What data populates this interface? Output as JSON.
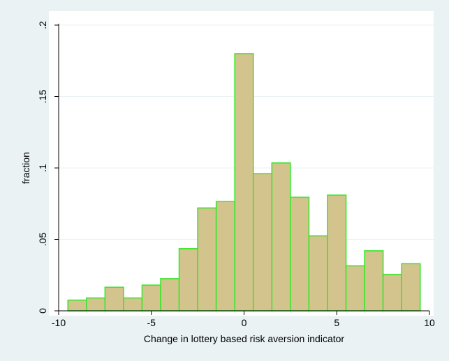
{
  "chart_data": {
    "type": "bar",
    "xlabel": "Change in lottery based risk aversion indicator",
    "ylabel": "fraction",
    "xlim": [
      -10,
      10
    ],
    "ylim": [
      0,
      0.2
    ],
    "x_ticks": [
      -10,
      -5,
      0,
      5,
      10
    ],
    "x_tick_labels": [
      "-10",
      "-5",
      "0",
      "5",
      "10"
    ],
    "y_ticks": [
      0,
      0.05,
      0.1,
      0.15,
      0.2
    ],
    "y_tick_labels": [
      "0",
      ".05",
      ".1",
      ".15",
      ".2"
    ],
    "grid": "horizontal",
    "bin_width": 1,
    "bins": [
      {
        "from": -9.5,
        "to": -8.5,
        "value": 0.0075
      },
      {
        "from": -8.5,
        "to": -7.5,
        "value": 0.009
      },
      {
        "from": -7.5,
        "to": -6.5,
        "value": 0.0165
      },
      {
        "from": -6.5,
        "to": -5.5,
        "value": 0.009
      },
      {
        "from": -5.5,
        "to": -4.5,
        "value": 0.018
      },
      {
        "from": -4.5,
        "to": -3.5,
        "value": 0.0225
      },
      {
        "from": -3.5,
        "to": -2.5,
        "value": 0.0435
      },
      {
        "from": -2.5,
        "to": -1.5,
        "value": 0.072
      },
      {
        "from": -1.5,
        "to": -0.5,
        "value": 0.0765
      },
      {
        "from": -0.5,
        "to": 0.5,
        "value": 0.18
      },
      {
        "from": 0.5,
        "to": 1.5,
        "value": 0.096
      },
      {
        "from": 1.5,
        "to": 2.5,
        "value": 0.1035
      },
      {
        "from": 2.5,
        "to": 3.5,
        "value": 0.0795
      },
      {
        "from": 3.5,
        "to": 4.5,
        "value": 0.0525
      },
      {
        "from": 4.5,
        "to": 5.5,
        "value": 0.081
      },
      {
        "from": 5.5,
        "to": 6.5,
        "value": 0.0315
      },
      {
        "from": 6.5,
        "to": 7.5,
        "value": 0.042
      },
      {
        "from": 7.5,
        "to": 8.5,
        "value": 0.0255
      },
      {
        "from": 8.5,
        "to": 9.5,
        "value": 0.033
      }
    ],
    "colors": {
      "bar_fill": "#d2c48c",
      "bar_stroke": "#3ee62e",
      "plot_background": "#ffffff",
      "outer_background": "#eaf2f3",
      "grid": "#eaf2f3",
      "axis": "#000000"
    }
  }
}
